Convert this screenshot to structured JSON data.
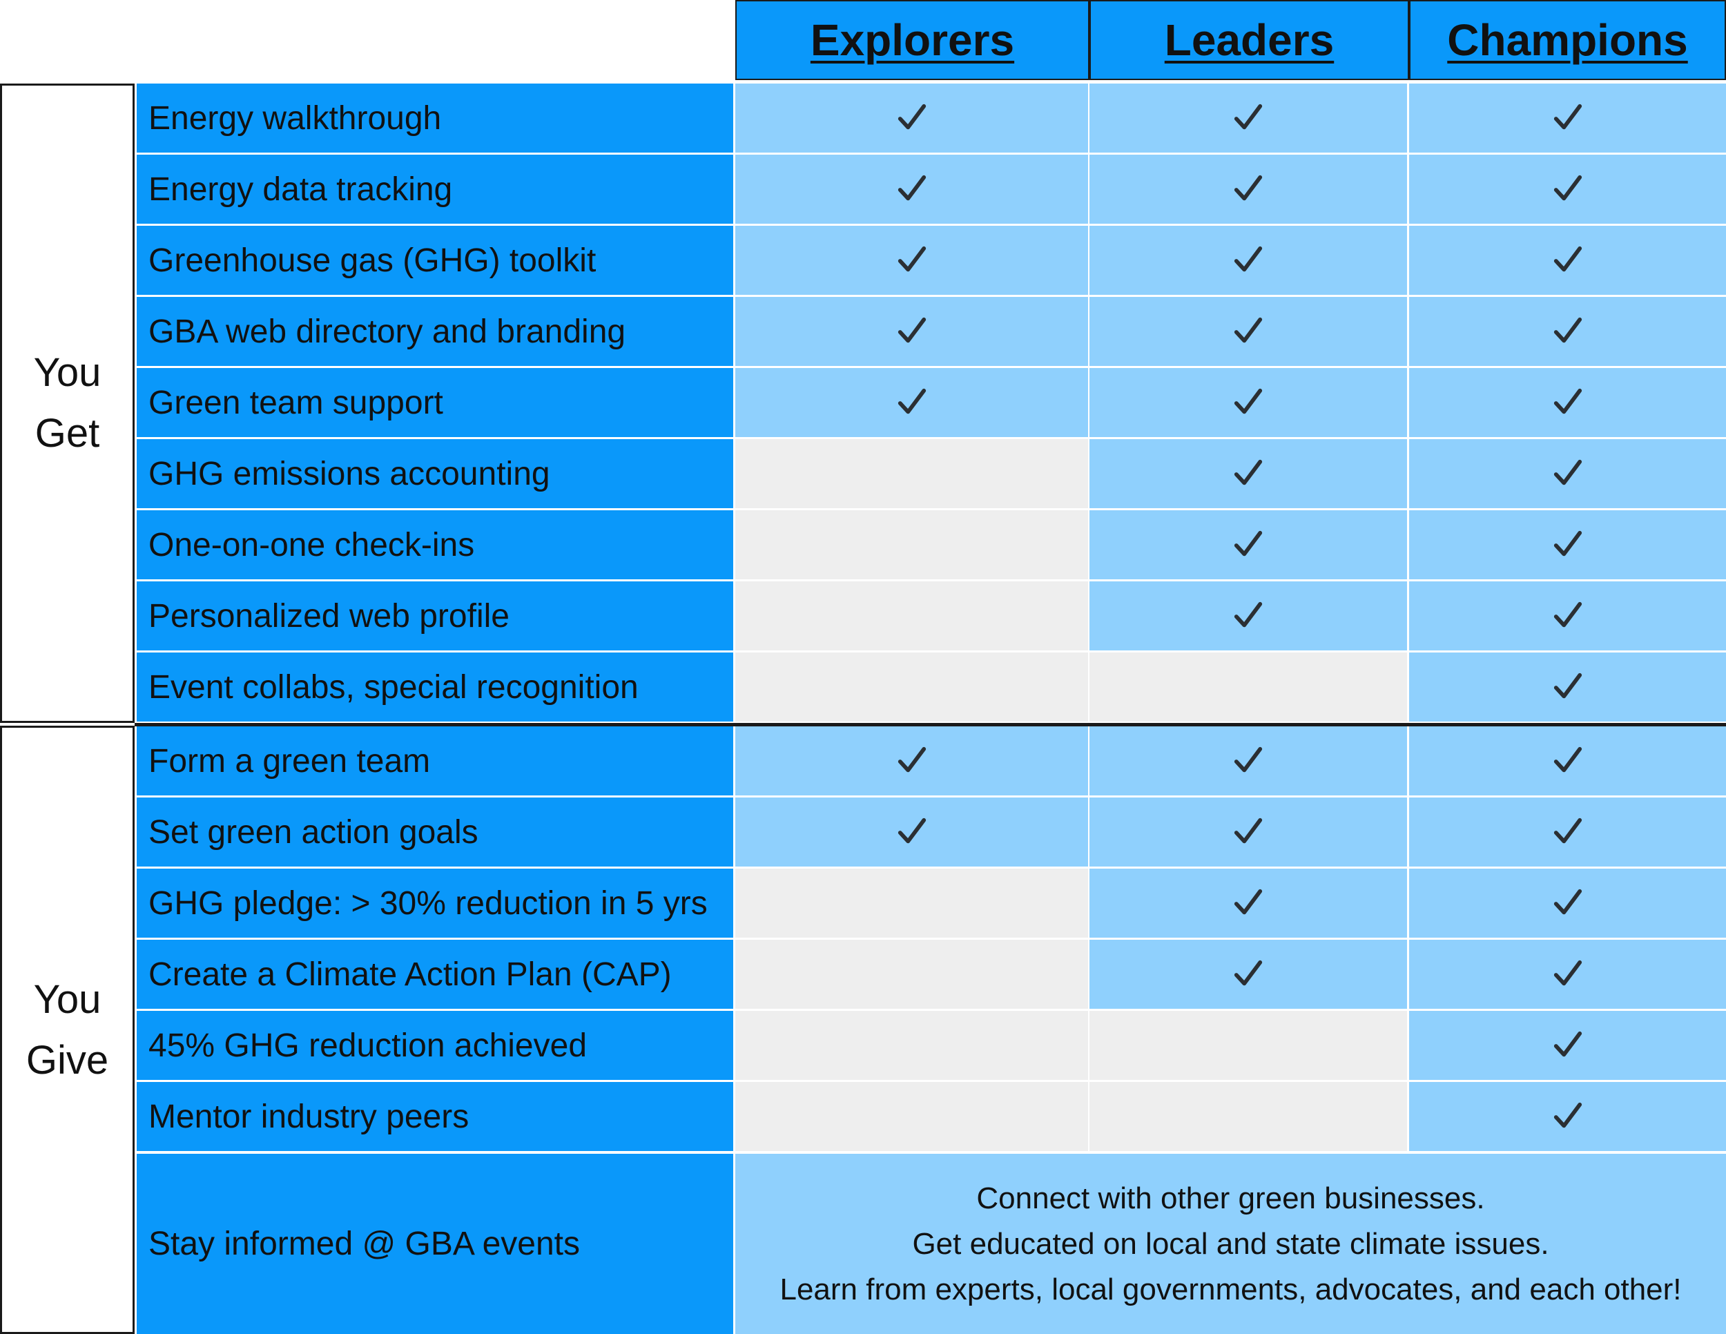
{
  "tiers": [
    "Explorers",
    "Leaders",
    "Champions"
  ],
  "sections": {
    "get": [
      "You",
      "Get"
    ],
    "give": [
      "You",
      "Give"
    ]
  },
  "rows": [
    {
      "label": "Energy walkthrough",
      "checks": [
        true,
        true,
        true
      ]
    },
    {
      "label": "Energy data tracking",
      "checks": [
        true,
        true,
        true
      ]
    },
    {
      "label": "Greenhouse gas (GHG) toolkit",
      "checks": [
        true,
        true,
        true
      ]
    },
    {
      "label": "GBA web directory and branding",
      "checks": [
        true,
        true,
        true
      ]
    },
    {
      "label": "Green team support",
      "checks": [
        true,
        true,
        true
      ]
    },
    {
      "label": "GHG emissions accounting",
      "checks": [
        false,
        true,
        true
      ]
    },
    {
      "label": "One-on-one check-ins",
      "checks": [
        false,
        true,
        true
      ]
    },
    {
      "label": "Personalized web profile",
      "checks": [
        false,
        true,
        true
      ]
    },
    {
      "label": "Event collabs, special recognition",
      "checks": [
        false,
        false,
        true
      ]
    },
    {
      "label": "Form a green team",
      "checks": [
        true,
        true,
        true
      ]
    },
    {
      "label": "Set green action goals",
      "checks": [
        true,
        true,
        true
      ]
    },
    {
      "label": "GHG pledge: > 30% reduction in 5 yrs",
      "checks": [
        false,
        true,
        true
      ]
    },
    {
      "label": "Create a Climate Action Plan (CAP)",
      "checks": [
        false,
        true,
        true
      ]
    },
    {
      "label": "45% GHG reduction achieved",
      "checks": [
        false,
        false,
        true
      ]
    },
    {
      "label": "Mentor industry peers",
      "checks": [
        false,
        false,
        true
      ]
    }
  ],
  "events": {
    "label": "Stay informed @ GBA events",
    "lines": [
      "Connect with other green businesses.",
      "Get educated on local and state climate issues.",
      "Learn from experts, local governments, advocates, and each other!"
    ]
  },
  "colors": {
    "header": "#0a98fa",
    "label_cell": "#0a98fa",
    "included": "#8fd0fd",
    "not_included": "#eeeeee",
    "check": "#2b2f33"
  }
}
